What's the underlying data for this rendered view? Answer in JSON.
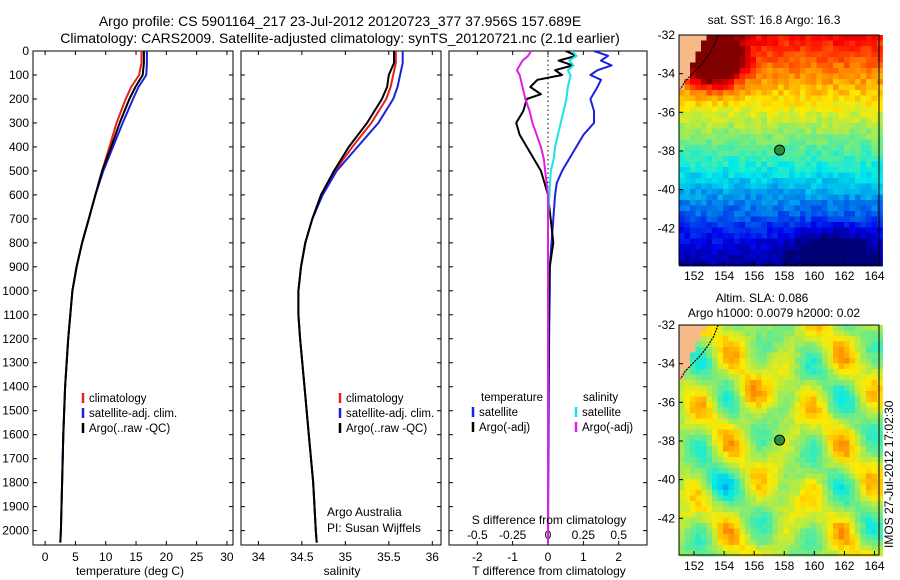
{
  "header": {
    "title": "Argo profile: CS 5901164_217 23-Jul-2012 20120723_377 37.956S 157.689E",
    "subtitle": "Climatology: CARS2009. Satellite-adjusted climatology: synTS_20120721.nc (2.1d earlier)"
  },
  "footer_stamp": "IMOS 27-Jul-2012 17:02:30",
  "colors": {
    "climatology": "#e8201a",
    "satellite": "#1a22e0",
    "argo": "#000000",
    "salinity_satellite": "#19e3e8",
    "salinity_argo": "#e21ee6",
    "float_marker": "#2e8b3c",
    "coast_land": "#f4bb88"
  },
  "chart_data": [
    {
      "type": "line",
      "panel": "temperature",
      "xlabel": "temperature (deg C)",
      "ylabel": "",
      "xlim": [
        -2,
        31
      ],
      "ylim": [
        2060,
        0
      ],
      "xticks": [
        0,
        5,
        10,
        15,
        20,
        25,
        30
      ],
      "yticks": [
        0,
        100,
        200,
        300,
        400,
        500,
        600,
        700,
        800,
        900,
        1000,
        1100,
        1200,
        1300,
        1400,
        1500,
        1600,
        1700,
        1800,
        1900,
        2000
      ],
      "legend": {
        "position": "center-right",
        "entries": [
          "climatology",
          "satellite-adj. clim.",
          "Argo(..raw -QC)"
        ]
      },
      "series": [
        {
          "name": "climatology",
          "depth": [
            0,
            50,
            100,
            150,
            200,
            300,
            400,
            500,
            600,
            700,
            800,
            900,
            1000,
            1200,
            1400,
            1600,
            1800,
            2000,
            2050
          ],
          "values": [
            15.9,
            15.9,
            15.5,
            14.2,
            13.3,
            11.8,
            10.6,
            9.4,
            8.3,
            7.2,
            6.1,
            5.2,
            4.5,
            3.8,
            3.3,
            3.0,
            2.8,
            2.6,
            2.5
          ]
        },
        {
          "name": "satellite-adj. clim.",
          "depth": [
            0,
            50,
            100,
            150,
            200,
            300,
            400,
            500,
            600,
            700,
            800,
            900,
            1000,
            1200,
            1400,
            1600,
            1800,
            2000,
            2050
          ],
          "values": [
            16.8,
            16.8,
            16.7,
            15.4,
            14.5,
            12.8,
            11.2,
            9.6,
            8.3,
            7.2,
            6.1,
            5.2,
            4.5,
            3.8,
            3.3,
            3.0,
            2.8,
            2.6,
            2.5
          ]
        },
        {
          "name": "Argo(..raw -QC)",
          "depth": [
            0,
            50,
            100,
            150,
            200,
            300,
            400,
            500,
            600,
            700,
            800,
            900,
            1000,
            1200,
            1400,
            1600,
            1800,
            2000,
            2050
          ],
          "values": [
            16.3,
            16.3,
            16.1,
            14.9,
            13.9,
            12.3,
            10.9,
            9.4,
            8.3,
            7.2,
            6.1,
            5.2,
            4.5,
            3.8,
            3.3,
            3.0,
            2.8,
            2.6,
            2.5
          ]
        }
      ]
    },
    {
      "type": "line",
      "panel": "salinity",
      "xlabel": "salinity",
      "xlim": [
        33.8,
        36.1
      ],
      "ylim": [
        2060,
        0
      ],
      "xticks": [
        34,
        34.5,
        35,
        35.5,
        36
      ],
      "annotation": [
        "Argo Australia",
        "PI: Susan Wijffels"
      ],
      "legend": {
        "position": "center-right",
        "entries": [
          "climatology",
          "satellite-adj. clim.",
          "Argo(..raw -QC)"
        ]
      },
      "series": [
        {
          "name": "climatology",
          "depth": [
            0,
            50,
            100,
            150,
            200,
            300,
            400,
            500,
            600,
            700,
            800,
            900,
            1000,
            1100,
            1200,
            1400,
            1600,
            1800,
            2000,
            2050
          ],
          "values": [
            35.58,
            35.58,
            35.55,
            35.52,
            35.47,
            35.3,
            35.08,
            34.88,
            34.73,
            34.62,
            34.54,
            34.49,
            34.46,
            34.46,
            34.48,
            34.53,
            34.58,
            34.63,
            34.66,
            34.67
          ]
        },
        {
          "name": "satellite-adj. clim.",
          "depth": [
            0,
            50,
            100,
            150,
            200,
            300,
            400,
            500,
            600,
            700,
            800,
            900,
            1000,
            1100,
            1200,
            1400,
            1600,
            1800,
            2000,
            2050
          ],
          "values": [
            35.66,
            35.66,
            35.63,
            35.6,
            35.55,
            35.38,
            35.14,
            34.9,
            34.74,
            34.62,
            34.54,
            34.49,
            34.46,
            34.46,
            34.48,
            34.53,
            34.58,
            34.63,
            34.66,
            34.67
          ]
        },
        {
          "name": "Argo(..raw -QC)",
          "depth": [
            0,
            50,
            100,
            150,
            200,
            300,
            400,
            500,
            600,
            700,
            800,
            900,
            1000,
            1100,
            1200,
            1400,
            1600,
            1800,
            2000,
            2050
          ],
          "values": [
            35.56,
            35.56,
            35.5,
            35.48,
            35.42,
            35.25,
            35.04,
            34.87,
            34.72,
            34.62,
            34.54,
            34.49,
            34.46,
            34.46,
            34.48,
            34.53,
            34.58,
            34.63,
            34.66,
            34.67
          ]
        }
      ]
    },
    {
      "type": "line",
      "panel": "difference",
      "xlabel": "T difference from climatology",
      "xlabel_top": "S difference from climatology",
      "xlim": [
        -2.8,
        2.8
      ],
      "ylim": [
        2060,
        0
      ],
      "xticks": [
        -2,
        -1,
        0,
        1,
        2
      ],
      "xtick_labels": [
        "-2",
        "-1",
        "0",
        "1",
        "2"
      ],
      "s_ticks": [
        -0.5,
        -0.25,
        0,
        0.25,
        0.5
      ],
      "s_tick_labels": [
        "-0.5",
        "-0.25",
        "0",
        "0.25",
        "0.5"
      ],
      "legend": {
        "position": "lower-center",
        "groups": [
          {
            "heading": "temperature",
            "entries": [
              "satellite",
              "Argo(-adj)"
            ]
          },
          {
            "heading": "salinity",
            "entries": [
              "satellite",
              "Argo(-adj)"
            ]
          }
        ]
      },
      "series": [
        {
          "name": "satellite",
          "group": "temperature",
          "depth": [
            0,
            20,
            40,
            60,
            80,
            100,
            120,
            150,
            200,
            250,
            300,
            350,
            400,
            450,
            500,
            550,
            600,
            700,
            800,
            900,
            1000,
            1200,
            1500,
            2050
          ],
          "values": [
            1.3,
            1.7,
            1.5,
            1.8,
            1.4,
            1.2,
            1.5,
            1.4,
            1.2,
            1.3,
            1.3,
            1.0,
            0.8,
            0.6,
            0.4,
            0.25,
            0.2,
            0.15,
            0.1,
            0.05,
            0.05,
            0.03,
            0.02,
            0.0
          ]
        },
        {
          "name": "Argo(-adj)",
          "group": "temperature",
          "depth": [
            0,
            20,
            40,
            60,
            80,
            100,
            120,
            150,
            180,
            200,
            250,
            300,
            350,
            400,
            450,
            500,
            550,
            600,
            800,
            850,
            900,
            1000,
            1200,
            1500,
            2050
          ],
          "values": [
            0.5,
            0.8,
            0.3,
            0.7,
            0.2,
            0.4,
            -0.3,
            -0.5,
            -0.2,
            -0.6,
            -0.7,
            -0.9,
            -0.8,
            -0.6,
            -0.4,
            -0.2,
            -0.1,
            0.0,
            0.15,
            0.1,
            0.05,
            0.03,
            0.02,
            0.0,
            0.0
          ]
        },
        {
          "name": "satellite",
          "group": "salinity",
          "depth": [
            0,
            20,
            40,
            60,
            80,
            100,
            150,
            200,
            250,
            300,
            350,
            400,
            450,
            500,
            600,
            700,
            800,
            900,
            1000,
            1200,
            1500,
            2050
          ],
          "values": [
            0.17,
            0.2,
            0.15,
            0.18,
            0.14,
            0.16,
            0.14,
            0.13,
            0.11,
            0.09,
            0.07,
            0.05,
            0.04,
            0.02,
            0.01,
            0.0,
            0.0,
            0.0,
            0.0,
            0.0,
            0.0,
            0.0
          ]
        },
        {
          "name": "Argo(-adj)",
          "group": "salinity",
          "depth": [
            0,
            20,
            40,
            60,
            80,
            100,
            150,
            200,
            250,
            300,
            350,
            400,
            450,
            500,
            550,
            600,
            700,
            800,
            1000,
            1500,
            2050
          ],
          "values": [
            -0.12,
            -0.14,
            -0.18,
            -0.2,
            -0.22,
            -0.2,
            -0.18,
            -0.16,
            -0.13,
            -0.11,
            -0.08,
            -0.05,
            -0.03,
            -0.02,
            -0.01,
            0.0,
            0.0,
            0.0,
            0.0,
            0.0,
            0.0
          ]
        }
      ]
    },
    {
      "type": "heatmap",
      "panel": "sst_map",
      "title": "sat. SST: 16.8 Argo: 16.3",
      "xlim": [
        151,
        164.3
      ],
      "ylim": [
        -43.9,
        -32
      ],
      "xticks": [
        152,
        154,
        156,
        158,
        160,
        162,
        164
      ],
      "yticks": [
        -32,
        -34,
        -36,
        -38,
        -40,
        -42
      ],
      "marker": {
        "lon": 157.689,
        "lat": -37.956
      }
    },
    {
      "type": "heatmap",
      "panel": "sla_map",
      "title_lines": [
        "Altim. SLA: 0.086",
        "Argo h1000: 0.0079 h2000: 0.02"
      ],
      "xlim": [
        151,
        164.3
      ],
      "ylim": [
        -43.9,
        -32
      ],
      "xticks": [
        152,
        154,
        156,
        158,
        160,
        162,
        164
      ],
      "yticks": [
        -32,
        -34,
        -36,
        -38,
        -40,
        -42
      ],
      "marker": {
        "lon": 157.689,
        "lat": -37.956
      }
    }
  ]
}
